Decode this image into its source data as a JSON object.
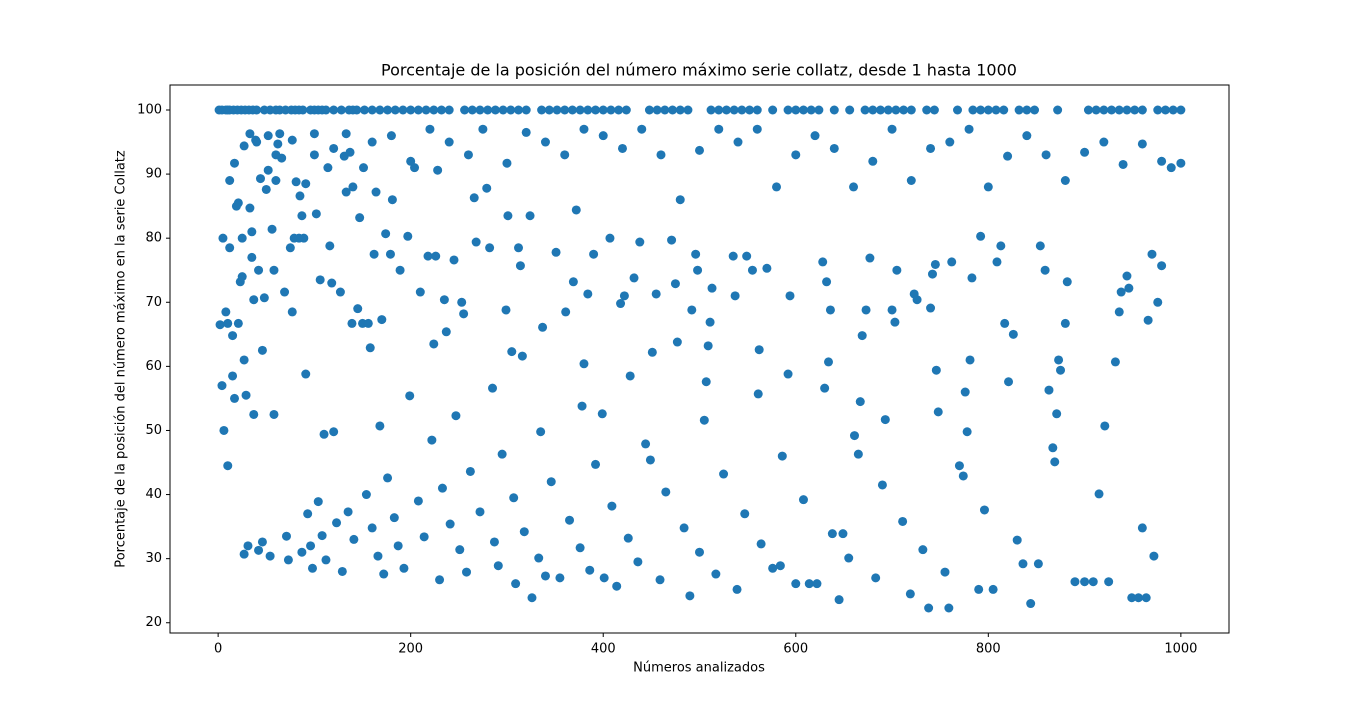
{
  "chart_data": {
    "type": "scatter",
    "title": "Porcentaje de la posición del número máximo serie collatz, desde 1 hasta 1000",
    "x_label": "Números analizados",
    "y_label": "Porcentaje de la posición del número máximo en la serie Collatz",
    "color": "#1f77b4",
    "xlim": [
      -50,
      1050
    ],
    "ylim": [
      18.4,
      103.9
    ],
    "xticks": [
      0,
      200,
      400,
      600,
      800,
      1000
    ],
    "yticks": [
      20,
      30,
      40,
      50,
      60,
      70,
      80,
      90,
      100
    ],
    "x": [
      1,
      4,
      8,
      10,
      12,
      16,
      20,
      24,
      28,
      32,
      36,
      40,
      48,
      54,
      60,
      64,
      70,
      76,
      80,
      84,
      88,
      96,
      100,
      104,
      108,
      112,
      120,
      128,
      136,
      140,
      144,
      152,
      160,
      168,
      176,
      184,
      192,
      200,
      208,
      216,
      224,
      232,
      240,
      256,
      264,
      272,
      280,
      288,
      296,
      304,
      312,
      320,
      336,
      344,
      352,
      360,
      368,
      376,
      384,
      392,
      400,
      408,
      416,
      424,
      448,
      456,
      464,
      472,
      480,
      488,
      512,
      520,
      528,
      536,
      544,
      552,
      560,
      576,
      592,
      600,
      608,
      616,
      624,
      640,
      656,
      672,
      680,
      688,
      696,
      704,
      712,
      720,
      736,
      744,
      768,
      784,
      792,
      800,
      808,
      816,
      832,
      840,
      848,
      872,
      904,
      912,
      920,
      928,
      936,
      944,
      952,
      960,
      976,
      984,
      992,
      1000,
      2,
      4,
      6,
      5,
      8,
      10,
      10,
      12,
      12,
      15,
      15,
      17,
      17,
      19,
      21,
      21,
      23,
      25,
      25,
      27,
      27,
      27,
      29,
      31,
      33,
      33,
      35,
      35,
      37,
      37,
      39,
      42,
      42,
      44,
      46,
      46,
      48,
      50,
      52,
      54,
      56,
      58,
      58,
      60,
      62,
      64,
      66,
      69,
      71,
      73,
      75,
      77,
      77,
      79,
      81,
      85,
      87,
      87,
      89,
      91,
      91,
      93,
      96,
      98,
      100,
      102,
      104,
      106,
      108,
      110,
      112,
      114,
      116,
      118,
      120,
      123,
      127,
      129,
      131,
      133,
      133,
      135,
      137,
      139,
      141,
      145,
      147,
      150,
      151,
      154,
      156,
      158,
      160,
      162,
      164,
      166,
      168,
      170,
      172,
      174,
      176,
      179,
      181,
      183,
      187,
      189,
      193,
      197,
      199,
      204,
      208,
      210,
      214,
      218,
      222,
      224,
      226,
      228,
      230,
      233,
      235,
      237,
      241,
      245,
      247,
      251,
      253,
      255,
      258,
      262,
      266,
      268,
      272,
      279,
      282,
      285,
      287,
      291,
      295,
      299,
      301,
      305,
      307,
      309,
      312,
      314,
      316,
      318,
      324,
      326,
      333,
      335,
      337,
      340,
      346,
      351,
      355,
      361,
      365,
      369,
      372,
      376,
      378,
      380,
      384,
      386,
      390,
      392,
      399,
      401,
      407,
      409,
      414,
      418,
      422,
      426,
      428,
      432,
      436,
      438,
      444,
      449,
      451,
      455,
      459,
      465,
      471,
      475,
      477,
      484,
      490,
      492,
      496,
      498,
      500,
      505,
      507,
      509,
      511,
      513,
      517,
      525,
      535,
      537,
      539,
      547,
      549,
      555,
      561,
      562,
      564,
      570,
      576,
      584,
      586,
      592,
      594,
      600,
      608,
      614,
      622,
      628,
      630,
      632,
      634,
      636,
      638,
      645,
      649,
      655,
      661,
      665,
      667,
      669,
      673,
      677,
      683,
      690,
      693,
      700,
      703,
      705,
      711,
      719,
      723,
      726,
      732,
      738,
      740,
      742,
      745,
      746,
      748,
      755,
      759,
      762,
      770,
      774,
      776,
      778,
      781,
      783,
      790,
      792,
      796,
      805,
      809,
      813,
      817,
      821,
      826,
      830,
      836,
      844,
      852,
      854,
      859,
      863,
      867,
      869,
      871,
      873,
      875,
      880,
      882,
      890,
      900,
      909,
      915,
      921,
      925,
      932,
      936,
      938,
      944,
      946,
      949,
      956,
      960,
      964,
      966,
      970,
      972,
      976,
      980,
      40,
      52,
      60,
      84,
      100,
      120,
      140,
      160,
      180,
      200,
      220,
      240,
      260,
      275,
      300,
      320,
      340,
      360,
      380,
      400,
      420,
      440,
      460,
      480,
      500,
      520,
      540,
      560,
      580,
      600,
      620,
      640,
      660,
      680,
      700,
      720,
      740,
      760,
      780,
      800,
      820,
      840,
      860,
      880,
      900,
      920,
      940,
      960,
      980,
      990,
      1000
    ],
    "values": [
      100,
      100,
      100,
      100,
      100,
      100,
      100,
      100,
      100,
      100,
      100,
      100,
      100,
      100,
      100,
      100,
      100,
      100,
      100,
      100,
      100,
      100,
      100,
      100,
      100,
      100,
      100,
      100,
      100,
      100,
      100,
      100,
      100,
      100,
      100,
      100,
      100,
      100,
      100,
      100,
      100,
      100,
      100,
      100,
      100,
      100,
      100,
      100,
      100,
      100,
      100,
      100,
      100,
      100,
      100,
      100,
      100,
      100,
      100,
      100,
      100,
      100,
      100,
      100,
      100,
      100,
      100,
      100,
      100,
      100,
      100,
      100,
      100,
      100,
      100,
      100,
      100,
      100,
      100,
      100,
      100,
      100,
      100,
      100,
      100,
      100,
      100,
      100,
      100,
      100,
      100,
      100,
      100,
      100,
      100,
      100,
      100,
      100,
      100,
      100,
      100,
      100,
      100,
      100,
      100,
      100,
      100,
      100,
      100,
      100,
      100,
      100,
      100,
      100,
      100,
      100,
      66.5,
      57,
      50,
      80,
      68.5,
      44.5,
      66.7,
      78.5,
      89,
      64.8,
      58.5,
      91.7,
      55,
      85,
      85.5,
      66.7,
      73.2,
      74,
      80,
      94.4,
      61,
      30.7,
      55.5,
      32,
      96.3,
      84.7,
      77,
      81,
      70.4,
      52.5,
      95.3,
      75,
      31.3,
      89.3,
      62.5,
      32.6,
      70.7,
      87.6,
      90.6,
      30.4,
      81.4,
      75,
      52.5,
      89,
      94.7,
      96.3,
      92.5,
      71.6,
      33.5,
      29.8,
      78.5,
      68.5,
      95.3,
      80,
      88.8,
      86.6,
      83.5,
      31,
      80,
      88.5,
      58.8,
      37,
      32,
      28.5,
      96.3,
      83.8,
      38.9,
      73.5,
      33.6,
      49.4,
      29.8,
      91,
      78.8,
      73,
      49.8,
      35.6,
      71.6,
      28,
      92.8,
      96.3,
      87.2,
      37.3,
      93.4,
      66.7,
      33,
      69,
      83.2,
      66.7,
      91,
      40,
      66.7,
      62.9,
      34.8,
      77.5,
      87.2,
      30.4,
      50.7,
      67.3,
      27.6,
      80.7,
      42.6,
      77.5,
      86,
      36.4,
      32,
      75,
      28.5,
      80.3,
      55.4,
      91,
      39,
      71.6,
      33.4,
      77.2,
      48.5,
      63.5,
      77.2,
      90.6,
      26.7,
      41,
      70.4,
      65.4,
      35.4,
      76.6,
      52.3,
      31.4,
      70,
      68.2,
      27.9,
      43.6,
      86.3,
      79.4,
      37.3,
      87.8,
      78.5,
      56.6,
      32.6,
      28.9,
      46.3,
      68.8,
      83.5,
      62.3,
      39.5,
      26.1,
      78.5,
      75.7,
      61.6,
      34.2,
      83.5,
      23.9,
      30.1,
      49.8,
      66.1,
      27.3,
      42,
      77.8,
      27,
      68.5,
      36,
      73.2,
      84.4,
      31.7,
      53.8,
      60.4,
      71.3,
      28.2,
      77.5,
      44.7,
      52.6,
      27,
      80,
      38.2,
      25.7,
      69.8,
      71,
      33.2,
      58.5,
      73.8,
      29.5,
      79.4,
      47.9,
      45.4,
      62.2,
      71.3,
      26.7,
      40.4,
      79.7,
      72.9,
      63.8,
      34.8,
      24.2,
      68.8,
      77.5,
      75,
      31,
      51.6,
      57.6,
      63.2,
      66.9,
      72.2,
      27.6,
      43.2,
      77.2,
      71,
      25.2,
      37,
      77.2,
      75,
      55.7,
      62.6,
      32.3,
      75.3,
      28.5,
      28.9,
      46,
      58.8,
      71,
      26.1,
      39.2,
      26.1,
      26.1,
      76.3,
      56.6,
      73.2,
      60.7,
      68.8,
      33.9,
      23.6,
      33.9,
      30.1,
      49.2,
      46.3,
      54.5,
      64.8,
      68.8,
      76.9,
      27,
      41.5,
      51.7,
      68.8,
      66.9,
      75,
      35.8,
      24.5,
      71.3,
      70.4,
      31.4,
      22.3,
      69.1,
      74.4,
      75.9,
      59.4,
      52.9,
      27.9,
      22.3,
      76.3,
      44.5,
      42.9,
      56,
      49.8,
      61,
      73.8,
      25.2,
      80.3,
      37.6,
      25.2,
      76.3,
      78.8,
      66.7,
      57.6,
      65,
      32.9,
      29.2,
      23,
      29.2,
      78.8,
      75,
      56.3,
      47.3,
      45.1,
      52.6,
      61,
      59.4,
      66.7,
      73.2,
      26.4,
      26.4,
      26.4,
      40.1,
      50.7,
      26.4,
      60.7,
      68.5,
      71.6,
      74.1,
      72.2,
      23.9,
      23.9,
      34.8,
      23.9,
      67.2,
      77.5,
      30.4,
      70,
      75.7,
      95,
      96,
      93,
      80,
      93,
      94,
      88,
      95,
      96,
      92,
      97,
      95,
      93,
      97,
      91.7,
      96.5,
      95,
      93,
      97,
      96,
      94,
      97,
      93,
      86,
      93.7,
      97,
      95,
      97,
      88,
      93,
      96,
      94,
      88,
      92,
      97,
      89,
      94,
      95,
      97,
      88,
      92.8,
      96,
      93,
      89,
      93.4,
      95,
      91.5,
      94.7,
      92,
      91,
      91.7
    ]
  }
}
